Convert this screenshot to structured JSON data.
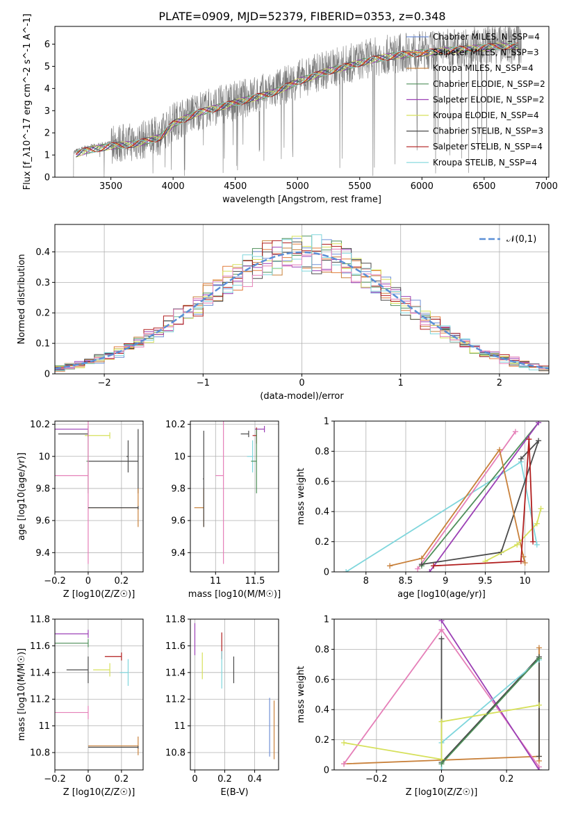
{
  "figure_title": "PLATE=0909, MJD=52379, FIBERID=0353, z=0.348",
  "colors": {
    "chabrier_miles": "#6f8fd6",
    "salpeter_miles": "#e07b39",
    "kroupa_miles": "#c8803a",
    "chabrier_elodie": "#4f8f5a",
    "salpeter_elodie": "#9b3fb5",
    "kroupa_elodie": "#d6e05a",
    "chabrier_stelib": "#4a4a4a",
    "salpeter_stelib": "#b01d1d",
    "kroupa_stelib": "#7fd6dc",
    "extra_pink": "#e57fb8",
    "data_gray": "#7a7a7a",
    "normal_curve": "#5b8fd6"
  },
  "chart_data": [
    {
      "id": "spectrum",
      "type": "line",
      "xlabel": "wavelength [Angstrom, rest frame]",
      "ylabel": "Flux [f_λ10^-17 erg cm^-2 s^-1 A^-1]",
      "xlim": [
        3050,
        7020
      ],
      "ylim": [
        0,
        6.8
      ],
      "xticks": [
        3500,
        4000,
        4500,
        5000,
        5500,
        6000,
        6500,
        7000
      ],
      "yticks": [
        0,
        1,
        2,
        3,
        4,
        5,
        6
      ],
      "grid": false,
      "legend_position": "upper-right",
      "legend": [
        {
          "label": "Chabrier MILES, N_SSP=4",
          "color": "#6f8fd6"
        },
        {
          "label": "Salpeter MILES, N_SSP=3",
          "color": "#e07b39"
        },
        {
          "label": "Kroupa MILES, N_SSP=4",
          "color": "#c8803a"
        },
        {
          "label": "Chabrier ELODIE, N_SSP=2",
          "color": "#4f8f5a"
        },
        {
          "label": "Salpeter ELODIE, N_SSP=2",
          "color": "#9b3fb5"
        },
        {
          "label": "Kroupa ELODIE, N_SSP=4",
          "color": "#d6e05a"
        },
        {
          "label": "Chabrier STELIB, N_SSP=3",
          "color": "#4a4a4a"
        },
        {
          "label": "Salpeter STELIB, N_SSP=4",
          "color": "#b01d1d"
        },
        {
          "label": "Kroupa STELIB, N_SSP=4",
          "color": "#7fd6dc"
        }
      ],
      "continuum_x": [
        3200,
        3300,
        3500,
        3700,
        3900,
        4000,
        4200,
        4400,
        4600,
        4800,
        5000,
        5200,
        5400,
        5600,
        5800,
        6000,
        6200,
        6400,
        6600,
        6800
      ],
      "continuum_y": [
        1.1,
        1.3,
        1.5,
        1.6,
        1.9,
        2.5,
        3.0,
        3.3,
        3.6,
        3.9,
        4.4,
        4.8,
        5.1,
        5.4,
        5.6,
        5.7,
        5.8,
        5.9,
        6.0,
        6.0
      ]
    },
    {
      "id": "residuals",
      "type": "histogram",
      "xlabel": "(data-model)/error",
      "ylabel": "Normed distribution",
      "xlim": [
        -2.5,
        2.5
      ],
      "ylim": [
        0,
        0.49
      ],
      "xticks": [
        -2,
        -1,
        0,
        1,
        2
      ],
      "yticks": [
        0.0,
        0.1,
        0.2,
        0.3,
        0.4
      ],
      "grid": true,
      "legend": [
        {
          "label": "𝒩(0,1)",
          "color": "#5b8fd6"
        }
      ],
      "bin_width": 0.1
    },
    {
      "id": "age_vs_Z",
      "type": "errorbar",
      "xlabel": "Z [log10(Z/Z☉)]",
      "ylabel": "age [log10(age/yr)]",
      "xlim": [
        -0.2,
        0.33
      ],
      "ylim": [
        9.28,
        10.22
      ],
      "xticks": [
        -0.2,
        0.0,
        0.2
      ],
      "yticks": [
        9.4,
        9.6,
        9.8,
        10.0,
        10.2
      ],
      "grid": true,
      "points": [
        {
          "x": 0.0,
          "y": 10.17,
          "xe": 0.3,
          "ye": 0.02,
          "color": "#9b3fb5"
        },
        {
          "x": 0.13,
          "y": 10.13,
          "xe": 0.15,
          "ye": 0.02,
          "color": "#d6e05a"
        },
        {
          "x": 0.0,
          "y": 10.14,
          "xe": 0.18,
          "ye": 0.02,
          "color": "#4a4a4a"
        },
        {
          "x": 0.3,
          "y": 9.97,
          "xe": 0.3,
          "ye": 0.2,
          "color": "#4a4a4a"
        },
        {
          "x": 0.0,
          "y": 9.97,
          "xe": 0.01,
          "ye": 0.2,
          "color": "#4f8f5a"
        },
        {
          "x": 0.24,
          "y": 10.0,
          "xe": 0.01,
          "ye": 0.1,
          "color": "#4a4a4a"
        },
        {
          "x": 0.0,
          "y": 9.88,
          "xe": 0.2,
          "ye": 0.55,
          "color": "#e57fb8"
        },
        {
          "x": 0.3,
          "y": 9.68,
          "xe": 0.3,
          "ye": 0.12,
          "color": "#c8803a"
        },
        {
          "x": 0.3,
          "y": 9.68,
          "xe": 0.3,
          "ye": 0.01,
          "color": "#4a4a4a"
        }
      ]
    },
    {
      "id": "age_vs_mass",
      "type": "errorbar",
      "xlabel": "mass [log10(M/M☉)]",
      "ylabel": "",
      "xlim": [
        10.68,
        11.8
      ],
      "ylim": [
        9.28,
        10.22
      ],
      "xticks": [
        11.0,
        11.5
      ],
      "yticks": [
        9.4,
        9.6,
        9.8,
        10.0,
        10.2
      ],
      "grid": true,
      "points": [
        {
          "x": 11.62,
          "y": 10.17,
          "xe": 0.12,
          "ye": 0.02,
          "color": "#9b3fb5"
        },
        {
          "x": 11.42,
          "y": 10.14,
          "xe": 0.1,
          "ye": 0.02,
          "color": "#4a4a4a"
        },
        {
          "x": 11.52,
          "y": 10.13,
          "xe": 0.05,
          "ye": 0.05,
          "color": "#b01d1d"
        },
        {
          "x": 11.47,
          "y": 10.0,
          "xe": 0.07,
          "ye": 0.1,
          "color": "#7fd6dc"
        },
        {
          "x": 11.52,
          "y": 9.97,
          "xe": 0.07,
          "ye": 0.2,
          "color": "#4f8f5a"
        },
        {
          "x": 11.1,
          "y": 9.88,
          "xe": 0.1,
          "ye": 0.55,
          "color": "#e57fb8"
        },
        {
          "x": 10.85,
          "y": 9.68,
          "xe": 0.12,
          "ye": 0.12,
          "color": "#c8803a"
        },
        {
          "x": 10.85,
          "y": 9.86,
          "xe": 0.01,
          "ye": 0.3,
          "color": "#4a4a4a"
        }
      ]
    },
    {
      "id": "weight_vs_age",
      "type": "line",
      "xlabel": "age [log10(age/yr)]",
      "ylabel": "mass weight",
      "xlim": [
        7.6,
        10.3
      ],
      "ylim": [
        0,
        1.0
      ],
      "xticks": [
        8.0,
        8.5,
        9.0,
        9.5,
        10.0
      ],
      "yticks": [
        0.0,
        0.2,
        0.4,
        0.6,
        0.8,
        1.0
      ],
      "grid": true,
      "series": [
        {
          "color": "#7fd6dc",
          "x": [
            7.75,
            9.95,
            10.15
          ],
          "y": [
            0.0,
            0.73,
            0.18
          ]
        },
        {
          "color": "#e57fb8",
          "x": [
            8.65,
            9.88
          ],
          "y": [
            0.02,
            0.93
          ]
        },
        {
          "color": "#4f8f5a",
          "x": [
            8.7,
            10.17
          ],
          "y": [
            0.04,
            0.99
          ]
        },
        {
          "color": "#9b3fb5",
          "x": [
            8.8,
            10.17
          ],
          "y": [
            0.0,
            0.99
          ]
        },
        {
          "color": "#4a4a4a",
          "x": [
            8.7,
            9.7,
            10.17,
            9.95
          ],
          "y": [
            0.05,
            0.13,
            0.87,
            0.75
          ]
        },
        {
          "color": "#c8803a",
          "x": [
            8.3,
            8.7,
            9.68,
            9.98,
            10.0
          ],
          "y": [
            0.04,
            0.09,
            0.81,
            0.1,
            0.06
          ]
        },
        {
          "color": "#d6e05a",
          "x": [
            9.5,
            9.9,
            10.15,
            10.2
          ],
          "y": [
            0.07,
            0.18,
            0.32,
            0.42
          ]
        },
        {
          "color": "#b01d1d",
          "x": [
            8.85,
            9.95,
            10.05,
            10.1
          ],
          "y": [
            0.04,
            0.07,
            0.88,
            0.2
          ]
        }
      ]
    },
    {
      "id": "mass_vs_Z",
      "type": "errorbar",
      "xlabel": "Z [log10(Z/Z☉)]",
      "ylabel": "mass [log10(M/M☉)]",
      "xlim": [
        -0.2,
        0.33
      ],
      "ylim": [
        10.67,
        11.8
      ],
      "xticks": [
        -0.2,
        0.0,
        0.2
      ],
      "yticks": [
        10.8,
        11.0,
        11.2,
        11.4,
        11.6,
        11.8
      ],
      "grid": true,
      "points": [
        {
          "x": 0.0,
          "y": 11.69,
          "xe": 0.26,
          "ye": 0.03,
          "color": "#9b3fb5"
        },
        {
          "x": 0.0,
          "y": 11.62,
          "xe": 0.3,
          "ye": 0.03,
          "color": "#4f8f5a"
        },
        {
          "x": 0.2,
          "y": 11.52,
          "xe": 0.1,
          "ye": 0.03,
          "color": "#b01d1d"
        },
        {
          "x": 0.13,
          "y": 11.42,
          "xe": 0.1,
          "ye": 0.05,
          "color": "#d6e05a"
        },
        {
          "x": 0.0,
          "y": 11.42,
          "xe": 0.13,
          "ye": 0.1,
          "color": "#4a4a4a"
        },
        {
          "x": 0.24,
          "y": 11.4,
          "xe": 0.05,
          "ye": 0.1,
          "color": "#7fd6dc"
        },
        {
          "x": 0.0,
          "y": 11.1,
          "xe": 0.3,
          "ye": 0.05,
          "color": "#e57fb8"
        },
        {
          "x": 0.3,
          "y": 10.85,
          "xe": 0.3,
          "ye": 0.07,
          "color": "#c8803a"
        },
        {
          "x": 0.3,
          "y": 10.84,
          "xe": 0.3,
          "ye": 0.01,
          "color": "#4a4a4a"
        }
      ]
    },
    {
      "id": "mass_vs_ebv",
      "type": "errorbar",
      "xlabel": "E(B-V)",
      "ylabel": "",
      "xlim": [
        -0.03,
        0.56
      ],
      "ylim": [
        10.67,
        11.8
      ],
      "xticks": [
        0.0,
        0.2,
        0.4
      ],
      "yticks": [
        10.8,
        11.0,
        11.2,
        11.4,
        11.6,
        11.8
      ],
      "grid": true,
      "points": [
        {
          "x": 0.0,
          "y": 11.65,
          "xe": 0.0,
          "ye": 0.12,
          "color": "#9b3fb5"
        },
        {
          "x": 0.05,
          "y": 11.45,
          "xe": 0.0,
          "ye": 0.1,
          "color": "#d6e05a"
        },
        {
          "x": 0.18,
          "y": 11.6,
          "xe": 0.0,
          "ye": 0.1,
          "color": "#b01d1d"
        },
        {
          "x": 0.18,
          "y": 11.42,
          "xe": 0.0,
          "ye": 0.14,
          "color": "#7fd6dc"
        },
        {
          "x": 0.26,
          "y": 11.42,
          "xe": 0.0,
          "ye": 0.1,
          "color": "#4a4a4a"
        },
        {
          "x": 0.5,
          "y": 10.99,
          "xe": 0.0,
          "ye": 0.22,
          "color": "#6f8fd6"
        },
        {
          "x": 0.53,
          "y": 10.97,
          "xe": 0.0,
          "ye": 0.22,
          "color": "#c8803a"
        }
      ]
    },
    {
      "id": "weight_vs_Z",
      "type": "line",
      "xlabel": "Z [log10(Z/Z☉)]",
      "ylabel": "mass weight",
      "xlim": [
        -0.33,
        0.33
      ],
      "ylim": [
        0,
        1.0
      ],
      "xticks": [
        -0.2,
        0.0,
        0.2
      ],
      "yticks": [
        0.0,
        0.2,
        0.4,
        0.6,
        0.8,
        1.0
      ],
      "grid": true,
      "series": [
        {
          "color": "#c8803a",
          "x": [
            -0.3,
            0.3,
            0.3,
            0.3
          ],
          "y": [
            0.04,
            0.09,
            0.81,
            0.06
          ]
        },
        {
          "color": "#e57fb8",
          "x": [
            -0.3,
            0.0,
            0.3
          ],
          "y": [
            0.04,
            0.93,
            0.02
          ]
        },
        {
          "color": "#9b3fb5",
          "x": [
            0.0,
            0.3
          ],
          "y": [
            0.99,
            0.0
          ]
        },
        {
          "color": "#4a4a4a",
          "x": [
            0.0,
            0.0,
            0.3,
            0.3
          ],
          "y": [
            0.87,
            0.05,
            0.75,
            0.09
          ]
        },
        {
          "color": "#7fd6dc",
          "x": [
            0.0,
            0.0,
            0.3
          ],
          "y": [
            0.0,
            0.18,
            0.73
          ]
        },
        {
          "color": "#d6e05a",
          "x": [
            -0.3,
            0.0,
            0.0,
            0.3
          ],
          "y": [
            0.18,
            0.07,
            0.32,
            0.43
          ]
        },
        {
          "color": "#4f8f5a",
          "x": [
            0.0,
            0.3
          ],
          "y": [
            0.04,
            0.74
          ]
        }
      ]
    }
  ]
}
